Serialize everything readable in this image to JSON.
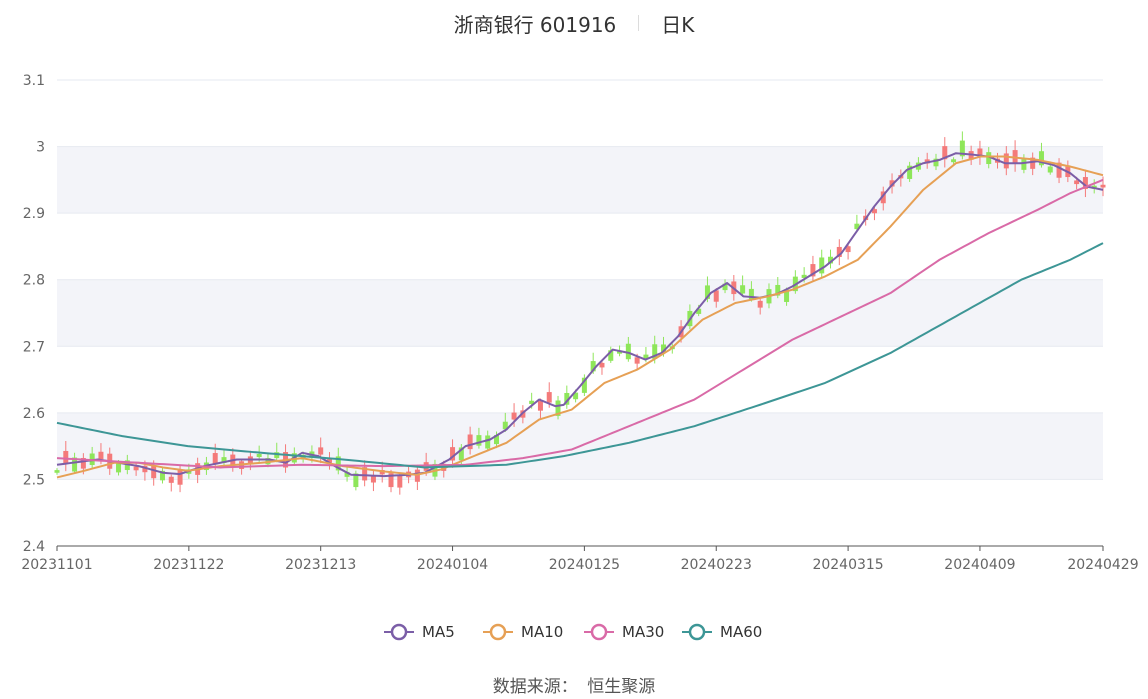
{
  "header": {
    "title": "浙商银行 601916",
    "period": "日K"
  },
  "source": {
    "label": "数据来源：",
    "name": "恒生聚源"
  },
  "colors": {
    "up": "#f47a7a",
    "down": "#8ee65a",
    "grid": "#e6e9f0",
    "band": "#f3f4f9",
    "ma5": "#7b5ea7",
    "ma10": "#e6a055",
    "ma30": "#d96aa7",
    "ma60": "#3d9696"
  },
  "chart_data": {
    "type": "candlestick",
    "ylim": [
      2.4,
      3.1
    ],
    "yticks": [
      "2.4",
      "2.5",
      "2.6",
      "2.7",
      "2.8",
      "2.9",
      "3",
      "3.1"
    ],
    "ytick_values": [
      2.4,
      2.5,
      2.6,
      2.7,
      2.8,
      2.9,
      3.0,
      3.1
    ],
    "xticks": [
      "20231101",
      "20231122",
      "20231213",
      "20240104",
      "20240125",
      "20240223",
      "20240315",
      "20240409",
      "20240429"
    ],
    "xtick_index": [
      0,
      15,
      30,
      45,
      60,
      75,
      90,
      105,
      119
    ],
    "n_days": 120,
    "legend": [
      "MA5",
      "MA10",
      "MA30",
      "MA60"
    ],
    "legend_position": "bottom",
    "ma_anchor_points": {
      "MA5": [
        [
          0,
          2.522
        ],
        [
          5,
          2.53
        ],
        [
          10,
          2.52
        ],
        [
          13,
          2.51
        ],
        [
          15,
          2.508
        ],
        [
          18,
          2.52
        ],
        [
          22,
          2.53
        ],
        [
          26,
          2.53
        ],
        [
          28,
          2.525
        ],
        [
          30,
          2.54
        ],
        [
          32,
          2.535
        ],
        [
          34,
          2.52
        ],
        [
          36,
          2.507
        ],
        [
          40,
          2.505
        ],
        [
          43,
          2.507
        ],
        [
          45,
          2.51
        ],
        [
          48,
          2.53
        ],
        [
          50,
          2.55
        ],
        [
          53,
          2.56
        ],
        [
          55,
          2.575
        ],
        [
          57,
          2.6
        ],
        [
          59,
          2.62
        ],
        [
          61,
          2.61
        ],
        [
          62,
          2.612
        ],
        [
          64,
          2.64
        ],
        [
          66,
          2.67
        ],
        [
          68,
          2.695
        ],
        [
          70,
          2.69
        ],
        [
          72,
          2.68
        ],
        [
          74,
          2.69
        ],
        [
          76,
          2.715
        ],
        [
          78,
          2.75
        ],
        [
          80,
          2.78
        ],
        [
          82,
          2.795
        ],
        [
          84,
          2.775
        ],
        [
          86,
          2.773
        ],
        [
          88,
          2.778
        ],
        [
          90,
          2.79
        ],
        [
          92,
          2.805
        ],
        [
          94,
          2.82
        ],
        [
          96,
          2.84
        ],
        [
          98,
          2.875
        ],
        [
          100,
          2.91
        ],
        [
          102,
          2.94
        ],
        [
          104,
          2.965
        ],
        [
          106,
          2.975
        ],
        [
          108,
          2.98
        ],
        [
          110,
          2.99
        ],
        [
          112,
          2.988
        ],
        [
          114,
          2.985
        ],
        [
          116,
          2.975
        ],
        [
          118,
          2.975
        ],
        [
          120,
          2.978
        ],
        [
          122,
          2.972
        ],
        [
          124,
          2.96
        ],
        [
          126,
          2.94
        ],
        [
          128,
          2.935
        ]
      ],
      "MA10": [
        [
          0,
          2.503
        ],
        [
          3,
          2.512
        ],
        [
          7,
          2.525
        ],
        [
          10,
          2.525
        ],
        [
          13,
          2.518
        ],
        [
          16,
          2.513
        ],
        [
          20,
          2.52
        ],
        [
          25,
          2.525
        ],
        [
          30,
          2.532
        ],
        [
          35,
          2.52
        ],
        [
          40,
          2.512
        ],
        [
          44,
          2.507
        ],
        [
          47,
          2.515
        ],
        [
          50,
          2.53
        ],
        [
          55,
          2.555
        ],
        [
          59,
          2.59
        ],
        [
          63,
          2.605
        ],
        [
          67,
          2.645
        ],
        [
          71,
          2.665
        ],
        [
          75,
          2.695
        ],
        [
          79,
          2.74
        ],
        [
          83,
          2.765
        ],
        [
          87,
          2.775
        ],
        [
          90,
          2.785
        ],
        [
          94,
          2.805
        ],
        [
          98,
          2.83
        ],
        [
          102,
          2.88
        ],
        [
          106,
          2.935
        ],
        [
          110,
          2.975
        ],
        [
          113,
          2.985
        ],
        [
          116,
          2.985
        ],
        [
          120,
          2.98
        ],
        [
          124,
          2.97
        ],
        [
          128,
          2.957
        ]
      ],
      "MA30": [
        [
          0,
          2.532
        ],
        [
          10,
          2.525
        ],
        [
          20,
          2.518
        ],
        [
          30,
          2.522
        ],
        [
          40,
          2.52
        ],
        [
          50,
          2.522
        ],
        [
          57,
          2.532
        ],
        [
          63,
          2.545
        ],
        [
          70,
          2.58
        ],
        [
          78,
          2.62
        ],
        [
          84,
          2.665
        ],
        [
          90,
          2.71
        ],
        [
          96,
          2.745
        ],
        [
          102,
          2.78
        ],
        [
          108,
          2.83
        ],
        [
          114,
          2.87
        ],
        [
          120,
          2.905
        ],
        [
          124,
          2.93
        ],
        [
          128,
          2.95
        ]
      ],
      "MA60": [
        [
          0,
          2.585
        ],
        [
          8,
          2.565
        ],
        [
          16,
          2.55
        ],
        [
          25,
          2.54
        ],
        [
          35,
          2.53
        ],
        [
          45,
          2.518
        ],
        [
          55,
          2.522
        ],
        [
          62,
          2.535
        ],
        [
          70,
          2.555
        ],
        [
          78,
          2.58
        ],
        [
          86,
          2.612
        ],
        [
          94,
          2.645
        ],
        [
          102,
          2.69
        ],
        [
          110,
          2.745
        ],
        [
          118,
          2.8
        ],
        [
          124,
          2.83
        ],
        [
          128,
          2.855
        ]
      ]
    }
  }
}
